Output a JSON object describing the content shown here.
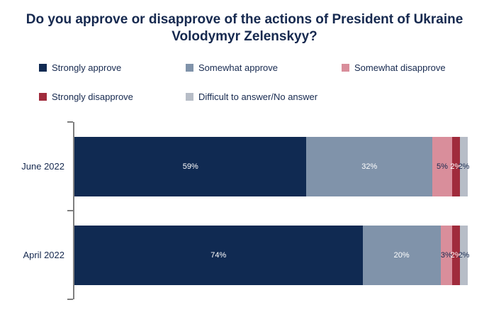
{
  "title": "Do you approve or disapprove of the actions of President of Ukraine Volodymyr Zelenskyy?",
  "colors": {
    "background": "#ffffff",
    "text": "#16294f",
    "axis": "#7f7f7f"
  },
  "chart_data": {
    "type": "bar",
    "orientation": "horizontal",
    "stacked": true,
    "value_suffix": "%",
    "xlim": [
      0,
      100
    ],
    "legend_position": "top",
    "grid": false,
    "categories": [
      "June 2022",
      "April 2022"
    ],
    "series": [
      {
        "name": "Strongly approve",
        "color": "#102a52",
        "label_color": "#ffffff",
        "values": [
          59,
          74
        ]
      },
      {
        "name": "Somewhat approve",
        "color": "#8093aa",
        "label_color": "#ffffff",
        "values": [
          32,
          20
        ]
      },
      {
        "name": "Somewhat disapprove",
        "color": "#d98e9b",
        "label_color": "#16294f",
        "values": [
          5,
          3
        ]
      },
      {
        "name": "Strongly disapprove",
        "color": "#a02b3c",
        "label_color": "#ffffff",
        "values": [
          2,
          2
        ]
      },
      {
        "name": "Difficult to answer/No answer",
        "color": "#b7bdc7",
        "label_color": "#16294f",
        "values": [
          2,
          2
        ]
      }
    ]
  }
}
